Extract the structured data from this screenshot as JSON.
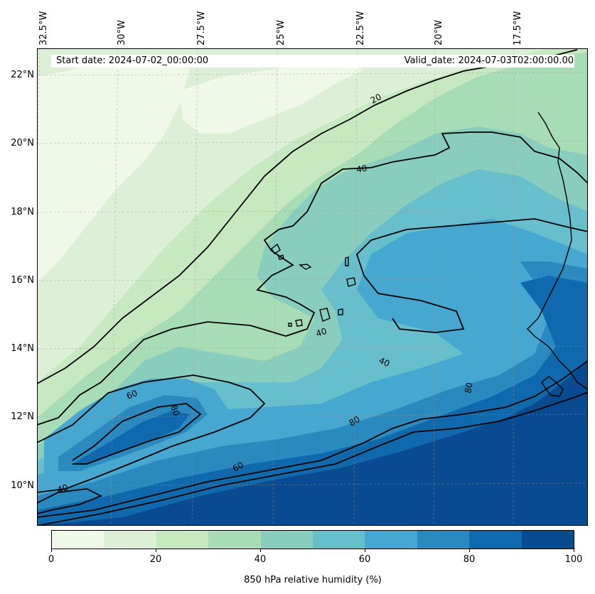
{
  "map": {
    "start_date": "Start date: 2024-07-02_00:00:00",
    "valid_date": "Valid_date: 2024-07-03T02:00:00.00",
    "longitude_labels": [
      "32.5°W",
      "30°W",
      "27.5°W",
      "25°W",
      "22.5°W",
      "20°W",
      "17.5°W"
    ],
    "latitude_labels": [
      "22°N",
      "20°N",
      "18°N",
      "16°N",
      "14°N",
      "12°N",
      "10°N"
    ],
    "contour_labels": [
      "20",
      "40",
      "40",
      "40",
      "60",
      "80",
      "60",
      "80",
      "80",
      "40"
    ],
    "gridlines": true,
    "coastlines": true
  },
  "colorbar": {
    "label": "850 hPa relative humidity (%)",
    "ticks": [
      "0",
      "20",
      "40",
      "60",
      "80",
      "100"
    ],
    "levels": [
      0,
      10,
      20,
      30,
      40,
      50,
      60,
      70,
      80,
      90,
      100
    ],
    "colors": [
      "#f0f9e8",
      "#dcf0d5",
      "#c7e9c0",
      "#a8dcb5",
      "#89cdbf",
      "#66bfcb",
      "#46a7d0",
      "#2a8ac0",
      "#1169ad",
      "#084b91"
    ]
  }
}
